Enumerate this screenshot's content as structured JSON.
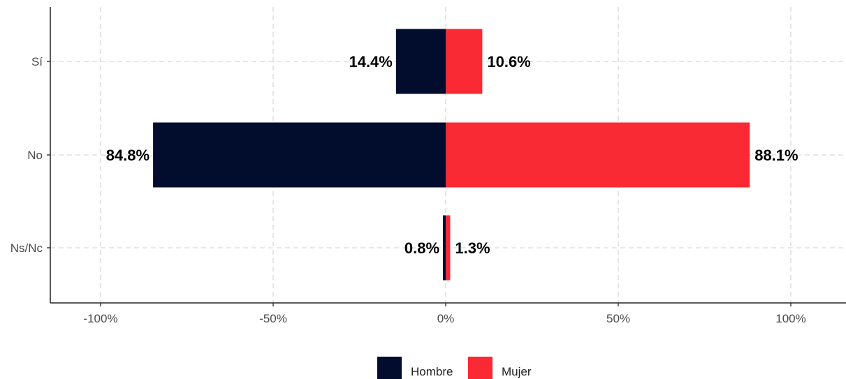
{
  "chart_data": {
    "type": "bar",
    "orientation": "horizontal",
    "diverging": true,
    "title": "",
    "xlabel": "",
    "ylabel": "",
    "categories": [
      "Sí",
      "No",
      "Ns/Nc"
    ],
    "series": [
      {
        "name": "Hombre",
        "values": [
          -14.4,
          -84.8,
          -0.8
        ],
        "labels": [
          "14.4%",
          "84.8%",
          "0.8%"
        ],
        "color": "#020d2e"
      },
      {
        "name": "Mujer",
        "values": [
          10.6,
          88.1,
          1.3
        ],
        "labels": [
          "10.6%",
          "88.1%",
          "1.3%"
        ],
        "color": "#f92a34"
      }
    ],
    "xlim": [
      -115,
      117
    ],
    "xticks": [
      -100,
      -50,
      0,
      50,
      100
    ],
    "xtick_labels": [
      "-100%",
      "-50%",
      "0%",
      "50%",
      "100%"
    ],
    "grid": true,
    "legend": {
      "position": "bottom",
      "entries": [
        "Hombre",
        "Mujer"
      ]
    }
  }
}
